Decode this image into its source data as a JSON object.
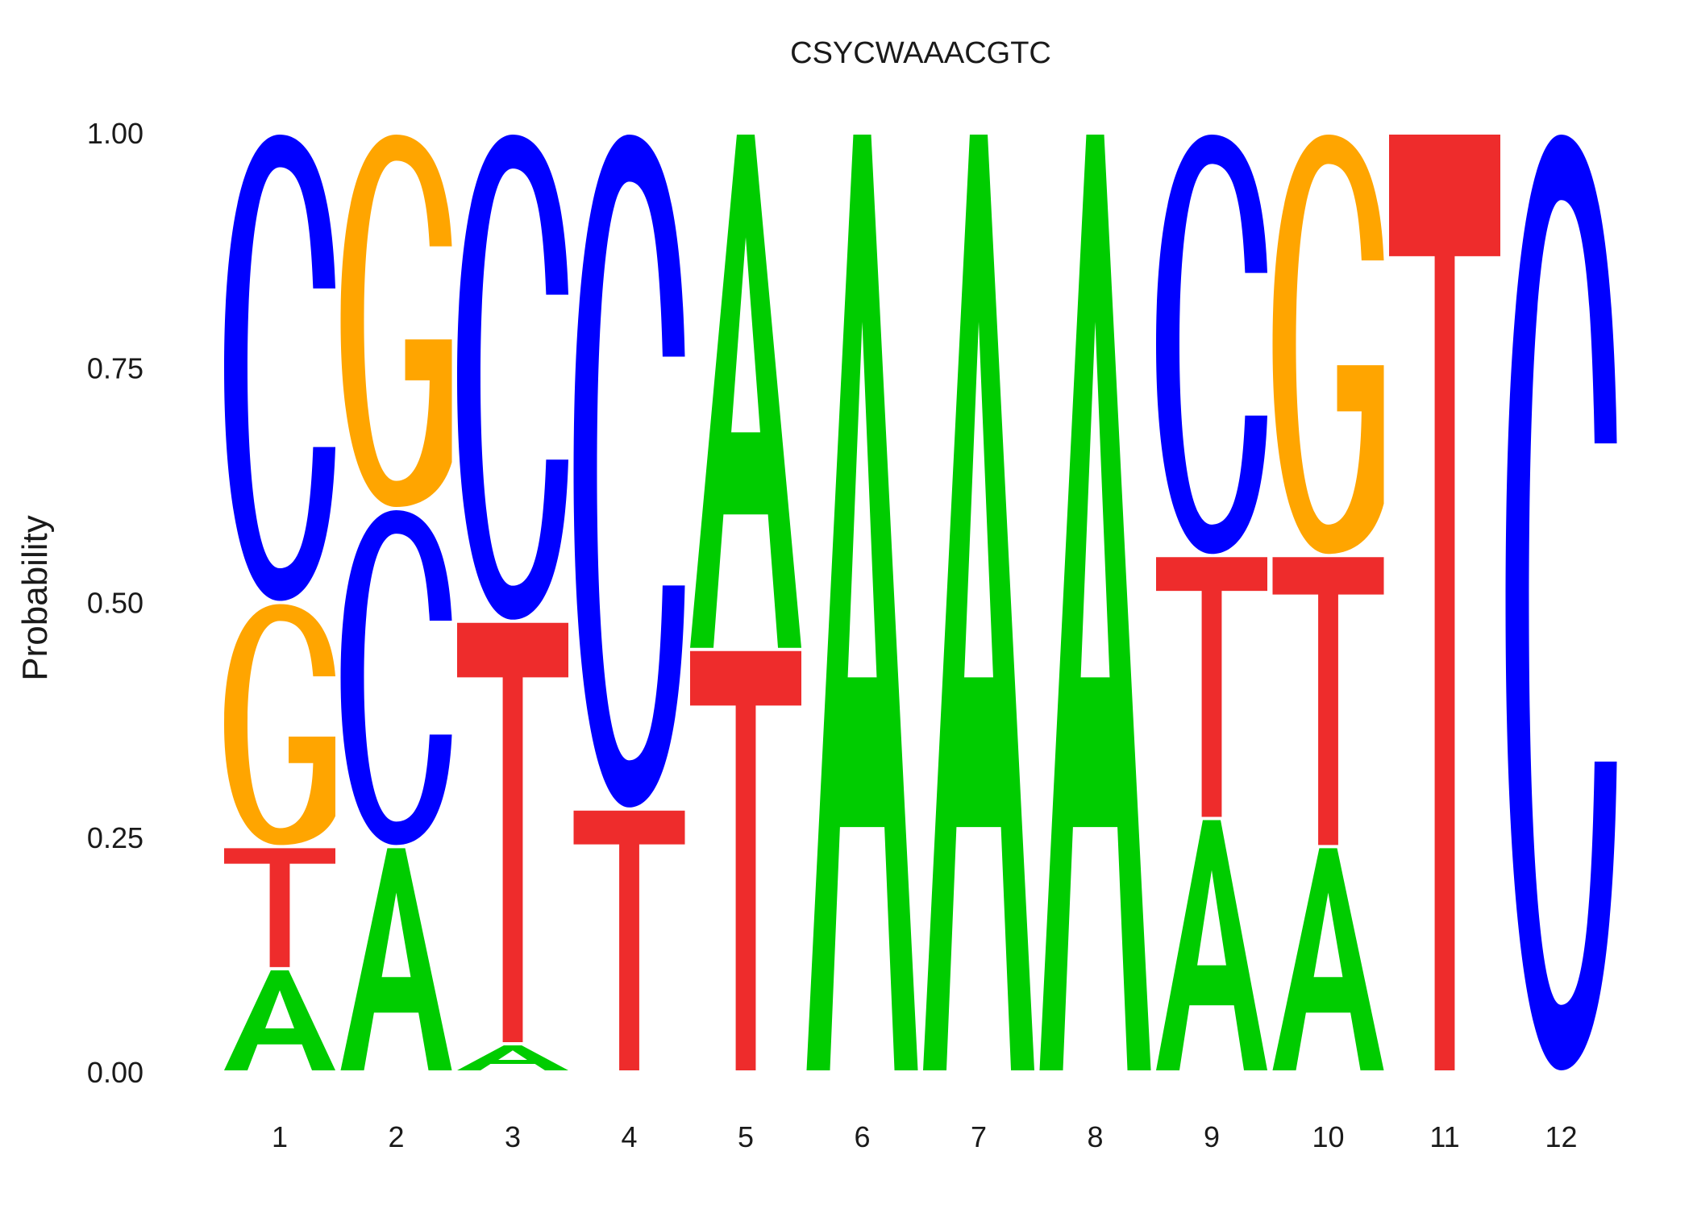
{
  "chart_data": {
    "type": "sequence-logo",
    "title": "CSYCWAAACGTC",
    "xlabel": "",
    "ylabel": "Probability",
    "ylim": [
      0,
      1
    ],
    "yticks": [
      "0.00",
      "0.25",
      "0.50",
      "0.75",
      "1.00"
    ],
    "grid": false,
    "legend": "none",
    "colors": {
      "A": "#00cc00",
      "C": "#0000ff",
      "G": "#ffa500",
      "T": "#ee2c2c"
    },
    "positions": [
      {
        "label": "1",
        "stack": [
          {
            "base": "A",
            "p": 0.11
          },
          {
            "base": "T",
            "p": 0.13
          },
          {
            "base": "G",
            "p": 0.26
          },
          {
            "base": "C",
            "p": 0.5
          }
        ]
      },
      {
        "label": "2",
        "stack": [
          {
            "base": "A",
            "p": 0.24
          },
          {
            "base": "C",
            "p": 0.36
          },
          {
            "base": "G",
            "p": 0.4
          }
        ]
      },
      {
        "label": "3",
        "stack": [
          {
            "base": "A",
            "p": 0.03
          },
          {
            "base": "T",
            "p": 0.45
          },
          {
            "base": "C",
            "p": 0.52
          }
        ]
      },
      {
        "label": "4",
        "stack": [
          {
            "base": "T",
            "p": 0.28
          },
          {
            "base": "C",
            "p": 0.72
          }
        ]
      },
      {
        "label": "5",
        "stack": [
          {
            "base": "T",
            "p": 0.45
          },
          {
            "base": "A",
            "p": 0.55
          }
        ]
      },
      {
        "label": "6",
        "stack": [
          {
            "base": "A",
            "p": 1.0
          }
        ]
      },
      {
        "label": "7",
        "stack": [
          {
            "base": "A",
            "p": 1.0
          }
        ]
      },
      {
        "label": "8",
        "stack": [
          {
            "base": "A",
            "p": 1.0
          }
        ]
      },
      {
        "label": "9",
        "stack": [
          {
            "base": "A",
            "p": 0.27
          },
          {
            "base": "T",
            "p": 0.28
          },
          {
            "base": "C",
            "p": 0.45
          }
        ]
      },
      {
        "label": "10",
        "stack": [
          {
            "base": "A",
            "p": 0.24
          },
          {
            "base": "T",
            "p": 0.31
          },
          {
            "base": "G",
            "p": 0.45
          }
        ]
      },
      {
        "label": "11",
        "stack": [
          {
            "base": "T",
            "p": 1.0
          }
        ]
      },
      {
        "label": "12",
        "stack": [
          {
            "base": "C",
            "p": 1.0
          }
        ]
      }
    ]
  }
}
